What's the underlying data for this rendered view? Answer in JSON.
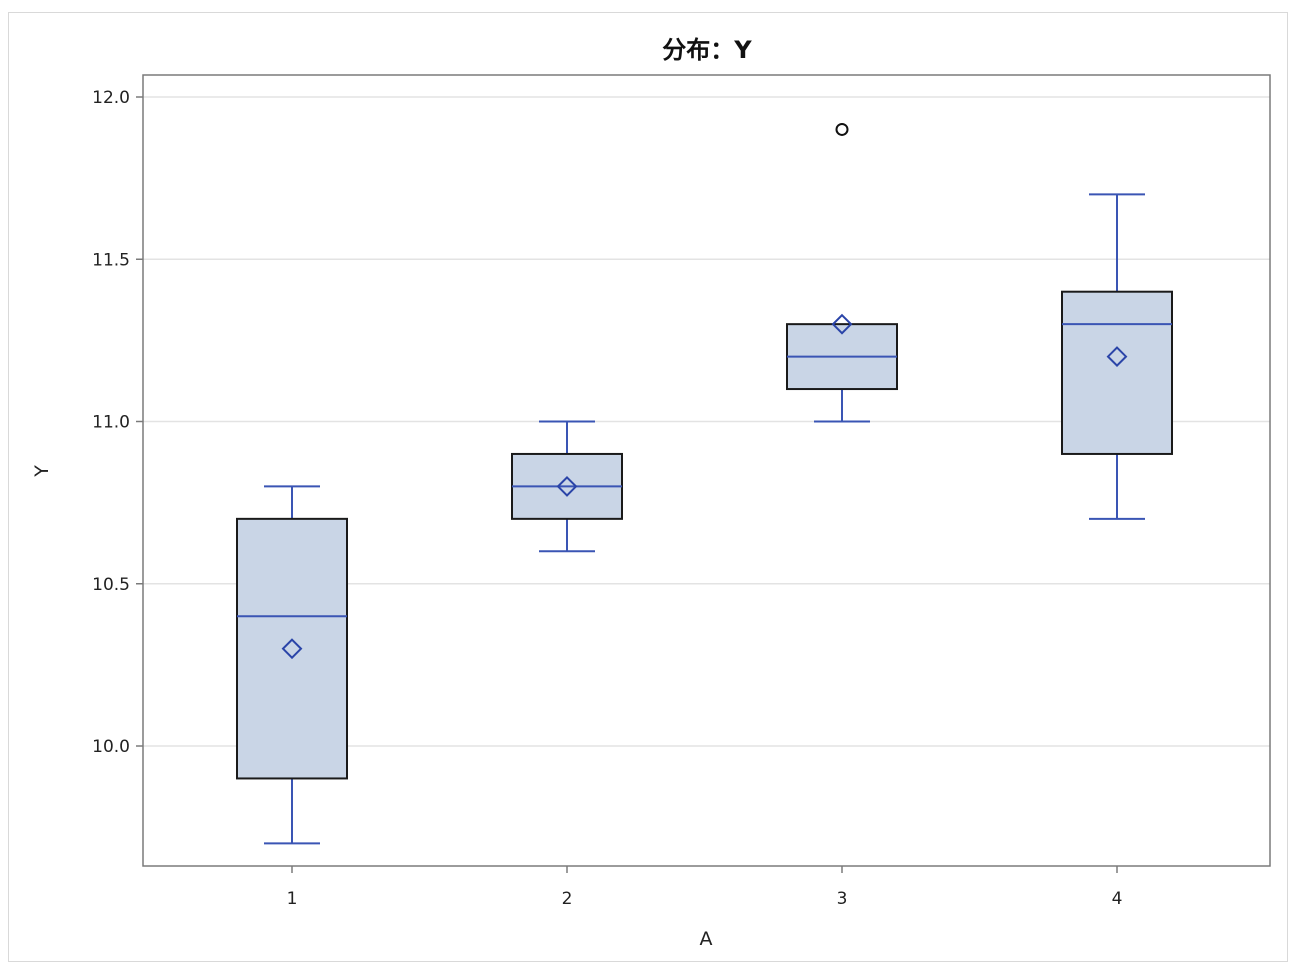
{
  "chart_data": {
    "type": "box",
    "title": "分布：Y",
    "xlabel": "A",
    "ylabel": "Y",
    "ylim": [
      9.7,
      12.05
    ],
    "yticks": [
      "10.0",
      "10.5",
      "11.0",
      "11.5",
      "12.0"
    ],
    "categories": [
      "1",
      "2",
      "3",
      "4"
    ],
    "grid": true,
    "boxes": [
      {
        "category": "1",
        "whisker_low": 9.7,
        "q1": 9.9,
        "median": 10.4,
        "q3": 10.7,
        "whisker_high": 10.8,
        "mean": 10.3,
        "outliers": []
      },
      {
        "category": "2",
        "whisker_low": 10.6,
        "q1": 10.7,
        "median": 10.8,
        "q3": 10.9,
        "whisker_high": 11.0,
        "mean": 10.8,
        "outliers": []
      },
      {
        "category": "3",
        "whisker_low": 11.0,
        "q1": 11.1,
        "median": 11.2,
        "q3": 11.3,
        "whisker_high": 11.3,
        "mean": 11.3,
        "outliers": [
          11.9
        ]
      },
      {
        "category": "4",
        "whisker_low": 10.7,
        "q1": 10.9,
        "median": 11.3,
        "q3": 11.4,
        "whisker_high": 11.7,
        "mean": 11.2,
        "outliers": []
      }
    ],
    "colors": {
      "box_fill": "#c9d5e6",
      "box_border": "#1a1a1a",
      "median": "#3a55b4",
      "whisker": "#3a55b4",
      "mean_marker": "#2a44a8",
      "outlier": "#111111",
      "grid": "#e3e3e3",
      "axis": "#7a7a7a"
    }
  }
}
